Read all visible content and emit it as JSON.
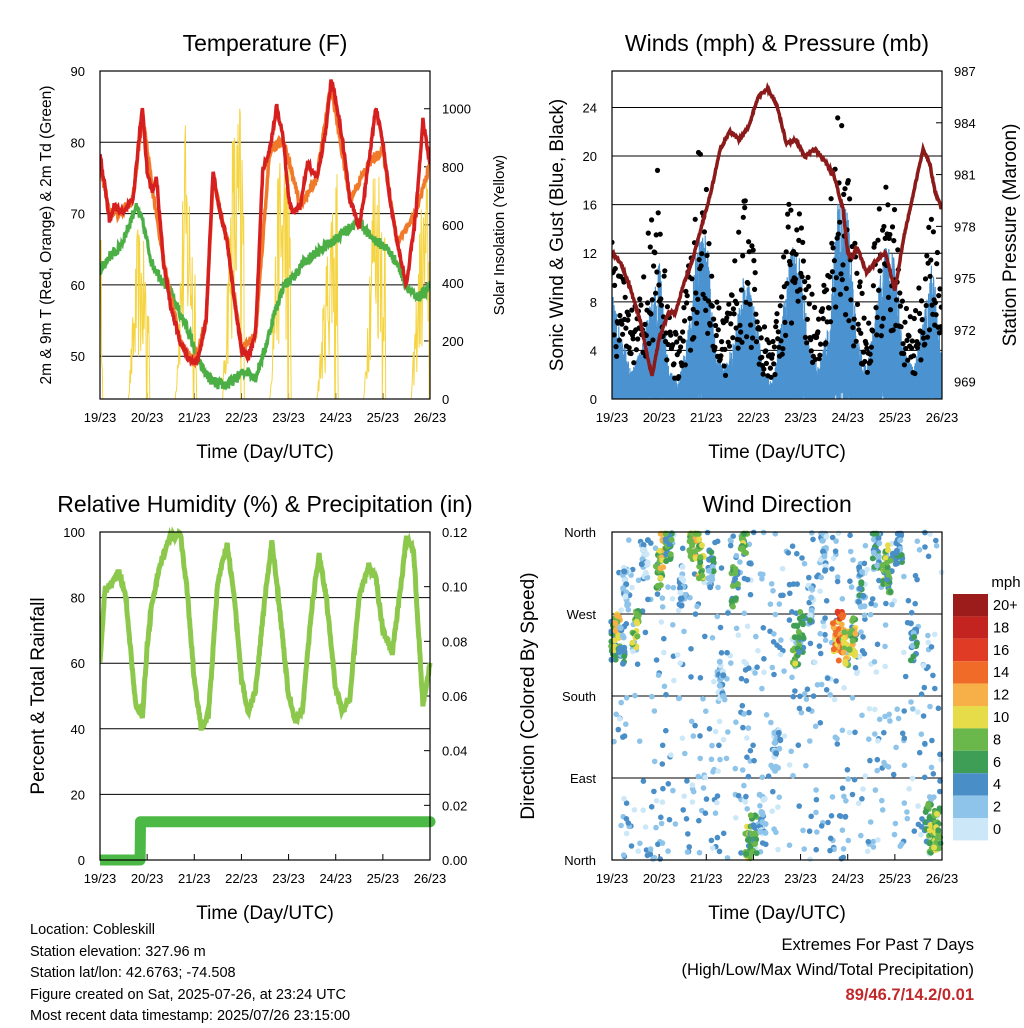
{
  "time_ticks": [
    "19/23",
    "20/23",
    "21/23",
    "22/23",
    "23/23",
    "24/23",
    "25/23",
    "26/23"
  ],
  "xlabel": "Time (Day/UTC)",
  "chart_data": [
    {
      "type": "line",
      "title": "Temperature (F)",
      "xlabel": "Time (Day/UTC)",
      "ylabel": "2m & 9m T (Red, Orange) & 2m Td (Green)",
      "y2label": "Solar Insolation (Yellow)",
      "x": [
        19,
        20,
        21,
        22,
        23,
        24,
        25,
        26
      ],
      "ylim": [
        44,
        90
      ],
      "yticks": [
        50,
        60,
        70,
        80,
        90
      ],
      "y2lim": [
        0,
        1130
      ],
      "y2ticks": [
        0,
        200,
        400,
        600,
        800,
        1000
      ],
      "series": [
        {
          "color": "#d62020",
          "x": [
            19.0,
            19.1,
            19.2,
            19.3,
            19.5,
            19.7,
            19.9,
            20.0,
            20.1,
            20.2,
            20.35,
            20.5,
            20.7,
            20.85,
            21.0,
            21.1,
            21.25,
            21.4,
            21.55,
            21.7,
            21.85,
            22.0,
            22.15,
            22.3,
            22.45,
            22.6,
            22.75,
            22.9,
            23.0,
            23.1,
            23.25,
            23.4,
            23.6,
            23.8,
            23.9,
            24.0,
            24.15,
            24.3,
            24.5,
            24.7,
            24.85,
            25.0,
            25.15,
            25.3,
            25.5,
            25.7,
            25.85,
            26.0
          ],
          "values": [
            78,
            74,
            69,
            71,
            70,
            72,
            85,
            76,
            73,
            75,
            63,
            57,
            52,
            50,
            49,
            50,
            55,
            76,
            70,
            66,
            58,
            51,
            50,
            53,
            76,
            79,
            85,
            80,
            72,
            70,
            71,
            77,
            75,
            82,
            89,
            86,
            80,
            72,
            68,
            77,
            85,
            80,
            72,
            66,
            60,
            70,
            83,
            77
          ]
        },
        {
          "color": "#f07a2a",
          "x": [
            19.0,
            19.2,
            19.4,
            19.7,
            19.9,
            20.1,
            20.35,
            20.7,
            21.0,
            21.25,
            21.4,
            21.7,
            22.0,
            22.3,
            22.6,
            22.9,
            23.25,
            23.6,
            23.9,
            24.3,
            24.7,
            25.0,
            25.3,
            25.7,
            26.0
          ],
          "values": [
            77,
            70,
            70,
            72,
            84,
            74,
            63,
            52,
            49,
            55,
            75,
            66,
            51,
            53,
            79,
            80,
            71,
            75,
            88,
            72,
            77,
            79,
            66,
            70,
            77
          ]
        },
        {
          "color": "#4caf45",
          "x": [
            19.0,
            19.2,
            19.4,
            19.6,
            19.75,
            19.9,
            20.0,
            20.1,
            20.3,
            20.5,
            20.7,
            20.9,
            21.1,
            21.3,
            21.5,
            21.7,
            21.9,
            22.1,
            22.3,
            22.5,
            22.7,
            22.9,
            23.1,
            23.3,
            23.5,
            23.7,
            23.9,
            24.1,
            24.3,
            24.5,
            24.7,
            24.9,
            25.1,
            25.3,
            25.5,
            25.7,
            25.9,
            26.0
          ],
          "values": [
            62,
            64,
            65,
            68,
            71,
            69,
            66,
            63,
            61,
            59,
            56,
            53,
            49,
            47,
            46,
            46,
            47,
            48,
            47,
            51,
            56,
            60,
            61,
            63,
            64,
            65,
            66,
            67,
            68,
            69,
            67,
            66,
            65,
            63,
            60,
            58,
            59,
            60
          ]
        },
        {
          "color": "#f5d442",
          "x": [
            19.0,
            19.2,
            19.4,
            19.6,
            19.8,
            20.0,
            20.2,
            20.4,
            20.6,
            20.8,
            21.0,
            21.2,
            21.4,
            21.6,
            21.8,
            22.0,
            22.2,
            22.4,
            22.6,
            22.8,
            23.0,
            23.2,
            23.4,
            23.6,
            23.8,
            24.0,
            24.2,
            24.4,
            24.6,
            24.8,
            25.0,
            25.2,
            25.4,
            25.6,
            25.8,
            26.0
          ],
          "values": [
            650,
            0,
            0,
            0,
            620,
            500,
            0,
            0,
            0,
            980,
            600,
            0,
            0,
            0,
            960,
            1080,
            0,
            0,
            0,
            900,
            940,
            0,
            0,
            0,
            500,
            1000,
            0,
            0,
            0,
            900,
            850,
            0,
            0,
            0,
            680,
            850
          ]
        }
      ]
    },
    {
      "type": "line",
      "title": "Winds (mph) & Pressure (mb)",
      "xlabel": "Time (Day/UTC)",
      "ylabel": "Sonic Wind & Gust (Blue, Black)",
      "y2label": "Station Pressure (Maroon)",
      "x": [
        19,
        20,
        21,
        22,
        23,
        24,
        25,
        26
      ],
      "ylim": [
        0,
        27
      ],
      "yticks": [
        0,
        4,
        8,
        12,
        16,
        20,
        24
      ],
      "y2lim": [
        968,
        987
      ],
      "y2ticks": [
        969,
        972,
        975,
        978,
        981,
        984,
        987
      ],
      "series": [
        {
          "color": "#8b1a1a",
          "x": [
            19.0,
            19.2,
            19.4,
            19.6,
            19.75,
            19.85,
            20.0,
            20.2,
            20.35,
            20.5,
            20.7,
            20.9,
            21.1,
            21.3,
            21.5,
            21.7,
            21.9,
            22.1,
            22.3,
            22.5,
            22.7,
            22.9,
            23.1,
            23.3,
            23.5,
            23.7,
            23.9,
            24.0,
            24.1,
            24.2,
            24.4,
            24.6,
            24.8,
            25.0,
            25.2,
            25.4,
            25.6,
            25.75,
            25.85,
            26.0
          ],
          "values": [
            976.5,
            975.8,
            974.3,
            972.5,
            970.5,
            969.3,
            971.5,
            973.0,
            973.0,
            974.5,
            976.0,
            978.0,
            980.0,
            982.5,
            983.5,
            983.0,
            983.8,
            985.5,
            986.0,
            985.0,
            982.8,
            983.0,
            982.0,
            982.5,
            981.8,
            981.0,
            979.0,
            976.5,
            976.2,
            976.8,
            975.3,
            976.0,
            976.5,
            974.3,
            977.5,
            980.0,
            982.5,
            981.5,
            980.0,
            979.0
          ]
        },
        {
          "color": "#4a93d0",
          "x": [
            19.0,
            19.2,
            19.4,
            19.6,
            19.8,
            20.0,
            20.2,
            20.4,
            20.6,
            20.8,
            21.0,
            21.2,
            21.4,
            21.6,
            21.8,
            22.0,
            22.2,
            22.4,
            22.6,
            22.8,
            23.0,
            23.2,
            23.4,
            23.6,
            23.8,
            24.0,
            24.2,
            24.4,
            24.6,
            24.8,
            25.0,
            25.2,
            25.4,
            25.6,
            25.8,
            26.0
          ],
          "values": [
            7,
            4,
            2,
            3,
            6,
            9,
            2,
            1,
            4,
            10,
            11,
            3,
            2,
            4,
            8,
            7,
            2,
            1,
            5,
            10,
            9,
            3,
            2,
            5,
            13,
            12,
            4,
            2,
            6,
            10,
            9,
            3,
            2,
            5,
            9,
            3
          ]
        },
        {
          "color": "#000000",
          "x": [
            19.0,
            19.2,
            19.4,
            19.6,
            19.8,
            20.0,
            20.2,
            20.4,
            20.6,
            20.8,
            21.0,
            21.2,
            21.4,
            21.6,
            21.8,
            22.0,
            22.2,
            22.4,
            22.6,
            22.8,
            23.0,
            23.2,
            23.4,
            23.6,
            23.8,
            24.0,
            24.2,
            24.4,
            24.6,
            24.8,
            25.0,
            25.2,
            25.4,
            25.6,
            25.8,
            26.0
          ],
          "values": [
            13,
            10,
            7,
            8,
            14,
            19,
            7,
            5,
            10,
            20,
            18,
            9,
            6,
            12,
            16,
            13,
            6,
            4,
            11,
            17,
            15,
            9,
            6,
            13,
            25,
            19,
            11,
            6,
            14,
            17,
            15,
            8,
            6,
            12,
            16,
            8
          ]
        }
      ]
    },
    {
      "type": "line",
      "title": "Relative Humidity (%) & Precipitation (in)",
      "xlabel": "Time (Day/UTC)",
      "ylabel": "Percent & Total Rainfall",
      "x": [
        19,
        20,
        21,
        22,
        23,
        24,
        25,
        26
      ],
      "ylim": [
        0,
        100
      ],
      "yticks": [
        0,
        20,
        40,
        60,
        80,
        100
      ],
      "y2lim": [
        0,
        0.12
      ],
      "y2ticks": [
        "0.00",
        "0.02",
        "0.04",
        "0.06",
        "0.08",
        "0.10",
        "0.12"
      ],
      "series": [
        {
          "color": "#8cc84b",
          "x": [
            19.0,
            19.1,
            19.25,
            19.4,
            19.55,
            19.75,
            19.9,
            20.0,
            20.1,
            20.25,
            20.4,
            20.55,
            20.7,
            20.85,
            21.0,
            21.15,
            21.3,
            21.5,
            21.7,
            21.85,
            22.0,
            22.15,
            22.3,
            22.5,
            22.65,
            22.8,
            23.0,
            23.15,
            23.3,
            23.5,
            23.65,
            23.8,
            24.0,
            24.15,
            24.3,
            24.5,
            24.7,
            24.85,
            25.0,
            25.2,
            25.35,
            25.5,
            25.65,
            25.85,
            26.0
          ],
          "values": [
            60,
            82,
            84,
            88,
            80,
            48,
            44,
            65,
            78,
            88,
            96,
            99,
            100,
            82,
            55,
            40,
            44,
            85,
            96,
            80,
            55,
            45,
            52,
            80,
            97,
            78,
            50,
            42,
            46,
            78,
            93,
            80,
            52,
            45,
            50,
            80,
            90,
            86,
            70,
            63,
            80,
            98,
            95,
            47,
            60
          ]
        },
        {
          "color": "#4cb845",
          "x": [
            19.0,
            19.85,
            19.86,
            26.0
          ],
          "values": [
            0.0,
            0.0,
            0.014,
            0.014
          ]
        }
      ]
    },
    {
      "type": "scatter",
      "title": "Wind Direction",
      "xlabel": "Time (Day/UTC)",
      "ylabel": "Direction (Colored By Speed)",
      "x": [
        19,
        20,
        21,
        22,
        23,
        24,
        25,
        26
      ],
      "ylim": [
        "North",
        "North"
      ],
      "yticks": [
        "North",
        "East",
        "South",
        "West",
        "North"
      ],
      "colorbar_title": "mph",
      "colorbar_labels": [
        "0",
        "2",
        "4",
        "6",
        "8",
        "10",
        "12",
        "14",
        "16",
        "18",
        "20+"
      ],
      "colorbar_colors": [
        "#cce8f8",
        "#8ec4ea",
        "#4a8ec8",
        "#3f9e55",
        "#6ab84c",
        "#e6dc4a",
        "#f7b047",
        "#f06a28",
        "#e03b24",
        "#c4241f",
        "#9c1b1b"
      ],
      "points": [
        {
          "x": 19.05,
          "dir": 240,
          "speed": 6
        },
        {
          "x": 19.1,
          "dir": 250,
          "speed": 10
        },
        {
          "x": 19.2,
          "dir": 235,
          "speed": 4
        },
        {
          "x": 19.3,
          "dir": 300,
          "speed": 2
        },
        {
          "x": 19.5,
          "dir": 255,
          "speed": 8
        },
        {
          "x": 19.7,
          "dir": 330,
          "speed": 2
        },
        {
          "x": 20.0,
          "dir": 320,
          "speed": 8
        },
        {
          "x": 20.1,
          "dir": 340,
          "speed": 10
        },
        {
          "x": 20.2,
          "dir": 350,
          "speed": 6
        },
        {
          "x": 20.5,
          "dir": 300,
          "speed": 3
        },
        {
          "x": 20.7,
          "dir": 345,
          "speed": 8
        },
        {
          "x": 20.8,
          "dir": 350,
          "speed": 10
        },
        {
          "x": 20.9,
          "dir": 330,
          "speed": 9
        },
        {
          "x": 21.1,
          "dir": 320,
          "speed": 4
        },
        {
          "x": 21.3,
          "dir": 200,
          "speed": 2
        },
        {
          "x": 21.6,
          "dir": 300,
          "speed": 6
        },
        {
          "x": 21.8,
          "dir": 355,
          "speed": 7
        },
        {
          "x": 21.9,
          "dir": 15,
          "speed": 8
        },
        {
          "x": 22.0,
          "dir": 30,
          "speed": 6
        },
        {
          "x": 22.2,
          "dir": 50,
          "speed": 2
        },
        {
          "x": 22.5,
          "dir": 120,
          "speed": 2
        },
        {
          "x": 22.9,
          "dir": 235,
          "speed": 8
        },
        {
          "x": 23.0,
          "dir": 250,
          "speed": 6
        },
        {
          "x": 23.2,
          "dir": 280,
          "speed": 3
        },
        {
          "x": 23.5,
          "dir": 340,
          "speed": 2
        },
        {
          "x": 23.75,
          "dir": 240,
          "speed": 12
        },
        {
          "x": 23.85,
          "dir": 250,
          "speed": 14
        },
        {
          "x": 23.95,
          "dir": 235,
          "speed": 10
        },
        {
          "x": 24.1,
          "dir": 245,
          "speed": 9
        },
        {
          "x": 24.3,
          "dir": 300,
          "speed": 3
        },
        {
          "x": 24.6,
          "dir": 340,
          "speed": 4
        },
        {
          "x": 24.8,
          "dir": 325,
          "speed": 8
        },
        {
          "x": 24.9,
          "dir": 315,
          "speed": 6
        },
        {
          "x": 25.1,
          "dir": 345,
          "speed": 4
        },
        {
          "x": 25.4,
          "dir": 240,
          "speed": 3
        },
        {
          "x": 25.7,
          "dir": 40,
          "speed": 6
        },
        {
          "x": 25.8,
          "dir": 30,
          "speed": 8
        },
        {
          "x": 25.9,
          "dir": 35,
          "speed": 7
        }
      ]
    }
  ],
  "info": {
    "location": "Location: Cobleskill",
    "elevation": "Station elevation: 327.96 m",
    "latlon": "Station lat/lon: 42.6763; -74.508",
    "created": "Figure created on Sat, 2025-07-26, at 23:24 UTC",
    "recent": "Most recent data timestamp: 2025/07/26 23:15:00"
  },
  "extremes": {
    "title": "Extremes For Past 7 Days",
    "subtitle": "(High/Low/Max Wind/Total Precipitation)",
    "values": "89/46.7/14.2/0.01"
  }
}
